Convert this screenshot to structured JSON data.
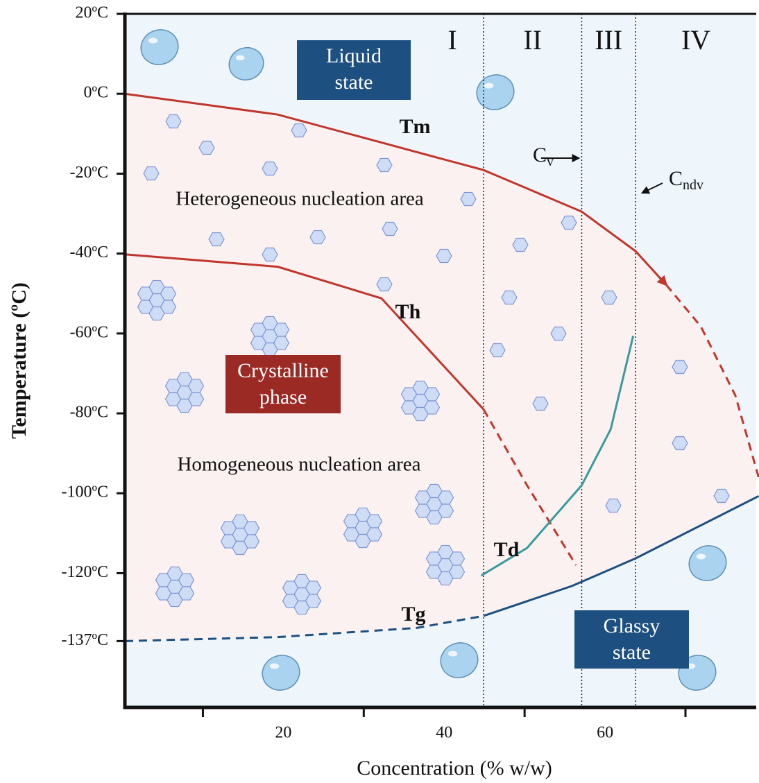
{
  "chart_data": {
    "type": "line",
    "xlabel": "Concentration (% w/w)",
    "ylabel": "Temperature (ºC)",
    "xlim": [
      0.3,
      78.8
    ],
    "ylim": [
      -153.6,
      20
    ],
    "xticks": [
      20,
      40,
      60
    ],
    "xminorticks": [
      10,
      30,
      50,
      70
    ],
    "yticks": [
      {
        "value": 20,
        "label": "20ºC"
      },
      {
        "value": 0,
        "label": "0ºC"
      },
      {
        "value": -20,
        "label": "-20ºC"
      },
      {
        "value": -40,
        "label": "-40ºC"
      },
      {
        "value": -60,
        "label": "-60ºC"
      },
      {
        "value": -80,
        "label": "-80ºC"
      },
      {
        "value": -100,
        "label": "-100ºC"
      },
      {
        "value": -120,
        "label": "-120ºC"
      },
      {
        "value": -137,
        "label": "-137ºC"
      }
    ],
    "boundaries": [
      44.9,
      57.1,
      63.8
    ],
    "regions": [
      "I",
      "II",
      "III",
      "IV"
    ],
    "series": [
      {
        "name": "Tm",
        "color": "#c0362c",
        "x": [
          0.3,
          19.3,
          44.9,
          57.1,
          63.8,
          67.6,
          71.9,
          76.2,
          79.1
        ],
        "values": [
          0,
          -5.2,
          -19.1,
          -29.5,
          -39.4,
          -47.8,
          -58.2,
          -75.5,
          -96
        ],
        "dashed_from": 5
      },
      {
        "name": "Th",
        "color": "#c0362c",
        "x": [
          0.3,
          19.3,
          32.2,
          44.9,
          50.3,
          56.4
        ],
        "values": [
          -40.2,
          -43.3,
          -51.2,
          -79,
          -98,
          -118
        ],
        "dashed_from": 3
      },
      {
        "name": "Td",
        "color": "#3a9a9c",
        "x": [
          44.6,
          50.3,
          57.1,
          60.7,
          63.5
        ],
        "values": [
          -120.6,
          -113.7,
          -98,
          -84,
          -60.6
        ]
      },
      {
        "name": "Tg",
        "color": "#1d4f80",
        "x": [
          0.3,
          19.3,
          36.6,
          44.9,
          55.9,
          63.8,
          79.1
        ],
        "values": [
          -137,
          -136,
          -133.7,
          -130.7,
          -123.2,
          -116.3,
          -100.7
        ],
        "dashed_until": 3
      }
    ],
    "annotations": [
      {
        "lines": [
          "Liquid",
          "state"
        ],
        "box": "#1d4f80"
      },
      {
        "lines": [
          "Crystalline",
          "phase"
        ],
        "box": "#9b2a25"
      },
      {
        "lines": [
          "Glassy",
          "state"
        ],
        "box": "#1d4f80"
      },
      {
        "lines": [
          "Heterogeneous nucleation area"
        ]
      },
      {
        "lines": [
          "Homogeneous nucleation area"
        ]
      }
    ],
    "concentrations": [
      {
        "text": "C",
        "sub": "v"
      },
      {
        "text": "C",
        "sub": "ndv"
      }
    ]
  }
}
